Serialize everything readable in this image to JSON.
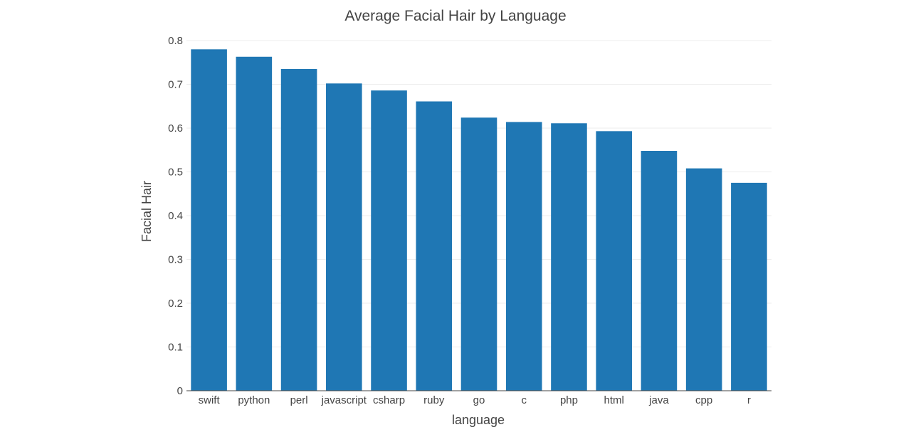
{
  "chart_data": {
    "type": "bar",
    "title": "Average Facial Hair by Language",
    "xlabel": "language",
    "ylabel": "Facial Hair",
    "categories": [
      "swift",
      "python",
      "perl",
      "javascript",
      "csharp",
      "ruby",
      "go",
      "c",
      "php",
      "html",
      "java",
      "cpp",
      "r"
    ],
    "values": [
      0.78,
      0.763,
      0.735,
      0.702,
      0.686,
      0.661,
      0.624,
      0.614,
      0.611,
      0.593,
      0.548,
      0.508,
      0.475
    ],
    "ylim": [
      0,
      0.8
    ],
    "yticks": [
      "0",
      "0.1",
      "0.2",
      "0.3",
      "0.4",
      "0.5",
      "0.6",
      "0.7",
      "0.8"
    ],
    "ytick_values": [
      0,
      0.1,
      0.2,
      0.3,
      0.4,
      0.5,
      0.6,
      0.7,
      0.8
    ],
    "grid": true,
    "bar_color": "#1f77b4"
  }
}
